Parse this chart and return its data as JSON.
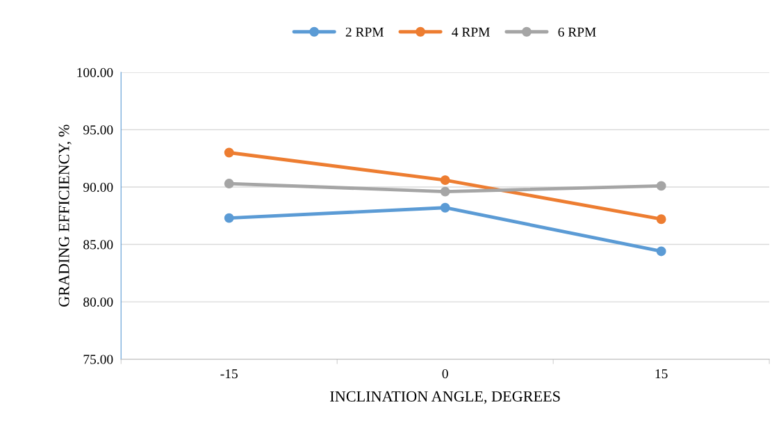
{
  "chart_data": {
    "type": "line",
    "xlabel": "INCLINATION ANGLE, DEGREES",
    "ylabel": "GRADING EFFICIENCY, %",
    "categories": [
      "-15",
      "0",
      "15"
    ],
    "series": [
      {
        "name": "2 RPM",
        "color": "#5b9bd5",
        "values": [
          87.3,
          88.2,
          84.4
        ]
      },
      {
        "name": "4 RPM",
        "color": "#ed7d31",
        "values": [
          93.0,
          90.6,
          87.2
        ]
      },
      {
        "name": "6 RPM",
        "color": "#a5a5a5",
        "values": [
          90.3,
          89.6,
          90.1
        ]
      }
    ],
    "ylim": [
      75,
      100
    ],
    "yticks": [
      {
        "value": 75,
        "label": "75.00"
      },
      {
        "value": 80,
        "label": "80.00"
      },
      {
        "value": 85,
        "label": "85.00"
      },
      {
        "value": 90,
        "label": "90.00"
      },
      {
        "value": 95,
        "label": "95.00"
      },
      {
        "value": 100,
        "label": "100.00"
      }
    ],
    "grid": "y",
    "legend": "top",
    "marker": "circle",
    "line_style": "solid"
  }
}
